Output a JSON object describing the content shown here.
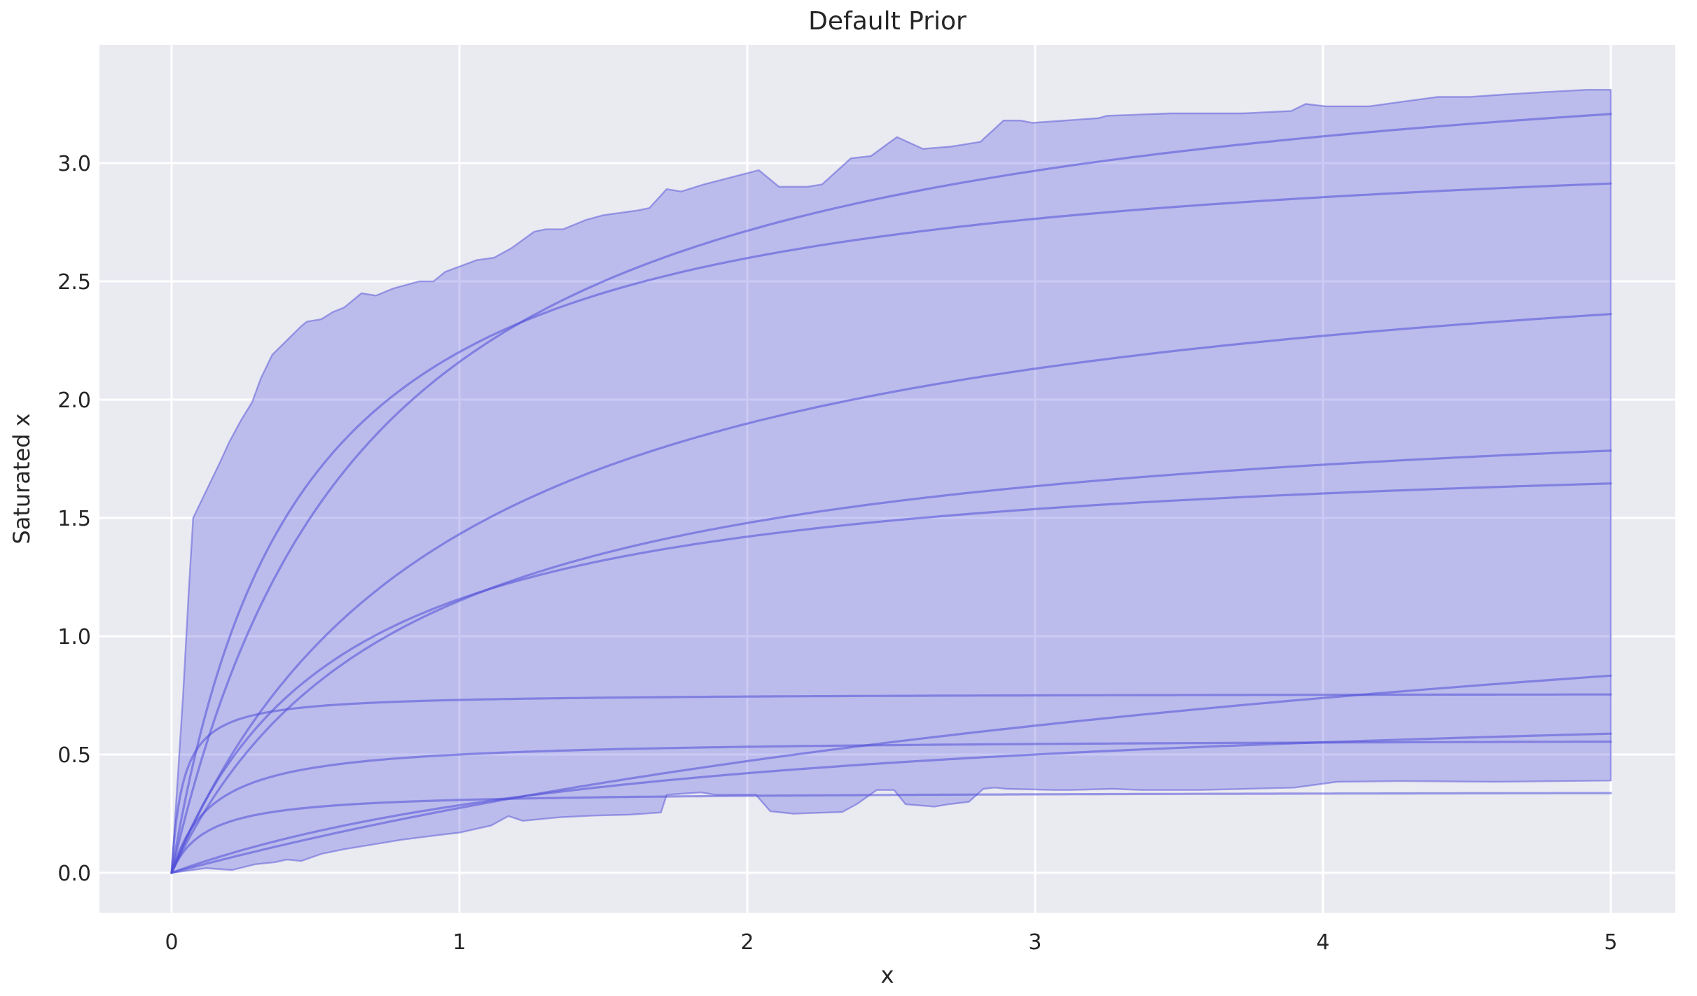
{
  "title": "Default Prior",
  "chart_data": {
    "type": "area",
    "title": "Default Prior",
    "xlabel": "x",
    "ylabel": "Saturated x",
    "xlim": [
      -0.2506,
      5.224
    ],
    "ylim": [
      -0.1686,
      3.5
    ],
    "x_ticks": [
      0,
      1,
      2,
      3,
      4,
      5
    ],
    "x_tick_labels": [
      "0",
      "1",
      "2",
      "3",
      "4",
      "5"
    ],
    "y_ticks": [
      0.0,
      0.5,
      1.0,
      1.5,
      2.0,
      2.5,
      3.0
    ],
    "y_tick_labels": [
      "0.0",
      "0.5",
      "1.0",
      "1.5",
      "2.0",
      "2.5",
      "3.0"
    ],
    "grid": true,
    "legend": false,
    "colors": {
      "figure_background": "#ffffff",
      "axes_background": "#eaeaf1",
      "gridline": "#ffffff",
      "band_fill": "#6767e3",
      "band_fill_opacity": 0.35,
      "band_edge": "#5f5cd9",
      "band_edge_opacity": 0.55,
      "curve": "#514ed8",
      "curve_opacity": 0.55,
      "text": "#262626"
    },
    "hdi_band": {
      "description": "jagged envelope (credible-interval band) around sampled saturation curves",
      "top": [
        [
          0,
          0
        ],
        [
          0.04,
          0.75
        ],
        [
          0.06,
          1.2
        ],
        [
          0.075,
          1.5
        ],
        [
          0.17,
          1.74
        ],
        [
          0.2,
          1.82
        ],
        [
          0.24,
          1.91
        ],
        [
          0.28,
          1.99
        ],
        [
          0.31,
          2.09
        ],
        [
          0.35,
          2.19
        ],
        [
          0.4,
          2.25
        ],
        [
          0.45,
          2.31
        ],
        [
          0.47,
          2.33
        ],
        [
          0.52,
          2.34
        ],
        [
          0.56,
          2.37
        ],
        [
          0.6,
          2.39
        ],
        [
          0.66,
          2.45
        ],
        [
          0.71,
          2.44
        ],
        [
          0.77,
          2.47
        ],
        [
          0.86,
          2.5
        ],
        [
          0.91,
          2.5
        ],
        [
          0.95,
          2.54
        ],
        [
          1.06,
          2.59
        ],
        [
          1.12,
          2.6
        ],
        [
          1.18,
          2.64
        ],
        [
          1.26,
          2.71
        ],
        [
          1.3,
          2.72
        ],
        [
          1.36,
          2.72
        ],
        [
          1.44,
          2.76
        ],
        [
          1.5,
          2.78
        ],
        [
          1.62,
          2.8
        ],
        [
          1.66,
          2.81
        ],
        [
          1.72,
          2.89
        ],
        [
          1.77,
          2.88
        ],
        [
          1.85,
          2.91
        ],
        [
          2.04,
          2.97
        ],
        [
          2.11,
          2.9
        ],
        [
          2.21,
          2.9
        ],
        [
          2.26,
          2.91
        ],
        [
          2.36,
          3.02
        ],
        [
          2.43,
          3.03
        ],
        [
          2.52,
          3.11
        ],
        [
          2.61,
          3.06
        ],
        [
          2.71,
          3.07
        ],
        [
          2.81,
          3.09
        ],
        [
          2.89,
          3.18
        ],
        [
          2.95,
          3.18
        ],
        [
          2.99,
          3.17
        ],
        [
          3.22,
          3.19
        ],
        [
          3.25,
          3.2
        ],
        [
          3.47,
          3.21
        ],
        [
          3.59,
          3.21
        ],
        [
          3.72,
          3.21
        ],
        [
          3.89,
          3.22
        ],
        [
          3.94,
          3.25
        ],
        [
          4.01,
          3.24
        ],
        [
          4.16,
          3.24
        ],
        [
          4.28,
          3.26
        ],
        [
          4.4,
          3.28
        ],
        [
          4.51,
          3.28
        ],
        [
          4.63,
          3.29
        ],
        [
          4.77,
          3.3
        ],
        [
          4.92,
          3.31
        ],
        [
          5,
          3.31
        ]
      ],
      "bottom": [
        [
          0,
          0
        ],
        [
          0.12,
          0.02
        ],
        [
          0.21,
          0.012
        ],
        [
          0.29,
          0.036
        ],
        [
          0.36,
          0.045
        ],
        [
          0.4,
          0.056
        ],
        [
          0.45,
          0.05
        ],
        [
          0.52,
          0.08
        ],
        [
          0.6,
          0.1
        ],
        [
          0.7,
          0.12
        ],
        [
          0.8,
          0.14
        ],
        [
          0.93,
          0.16
        ],
        [
          1.0,
          0.17
        ],
        [
          1.11,
          0.2
        ],
        [
          1.17,
          0.24
        ],
        [
          1.22,
          0.22
        ],
        [
          1.35,
          0.235
        ],
        [
          1.47,
          0.242
        ],
        [
          1.59,
          0.246
        ],
        [
          1.7,
          0.255
        ],
        [
          1.72,
          0.33
        ],
        [
          1.84,
          0.34
        ],
        [
          1.89,
          0.33
        ],
        [
          2.03,
          0.33
        ],
        [
          2.08,
          0.26
        ],
        [
          2.16,
          0.25
        ],
        [
          2.33,
          0.257
        ],
        [
          2.38,
          0.29
        ],
        [
          2.45,
          0.35
        ],
        [
          2.51,
          0.35
        ],
        [
          2.55,
          0.29
        ],
        [
          2.65,
          0.28
        ],
        [
          2.7,
          0.29
        ],
        [
          2.77,
          0.3
        ],
        [
          2.82,
          0.355
        ],
        [
          2.86,
          0.36
        ],
        [
          2.9,
          0.355
        ],
        [
          3.07,
          0.35
        ],
        [
          3.12,
          0.35
        ],
        [
          3.27,
          0.355
        ],
        [
          3.37,
          0.35
        ],
        [
          3.57,
          0.35
        ],
        [
          3.9,
          0.36
        ],
        [
          4.05,
          0.385
        ],
        [
          4.27,
          0.388
        ],
        [
          4.6,
          0.385
        ],
        [
          5,
          0.39
        ]
      ]
    },
    "sample_curves": {
      "model": "y = beta * x / (x + kappa)",
      "x_range": [
        0,
        5
      ],
      "params": [
        {
          "beta": 3.65,
          "kappa": 0.69
        },
        {
          "beta": 3.17,
          "kappa": 0.44
        },
        {
          "beta": 2.82,
          "kappa": 0.97
        },
        {
          "beta": 2.07,
          "kappa": 0.8
        },
        {
          "beta": 1.84,
          "kappa": 0.59
        },
        {
          "beta": 0.76,
          "kappa": 0.04
        },
        {
          "beta": 1.7,
          "kappa": 5.2
        },
        {
          "beta": 0.8,
          "kappa": 1.8
        },
        {
          "beta": 0.57,
          "kappa": 0.14
        },
        {
          "beta": 0.345,
          "kappa": 0.12
        }
      ],
      "values_at_x5": [
        3.21,
        2.92,
        2.36,
        1.78,
        1.65,
        0.75,
        0.83,
        0.59,
        0.55,
        0.34
      ]
    }
  }
}
